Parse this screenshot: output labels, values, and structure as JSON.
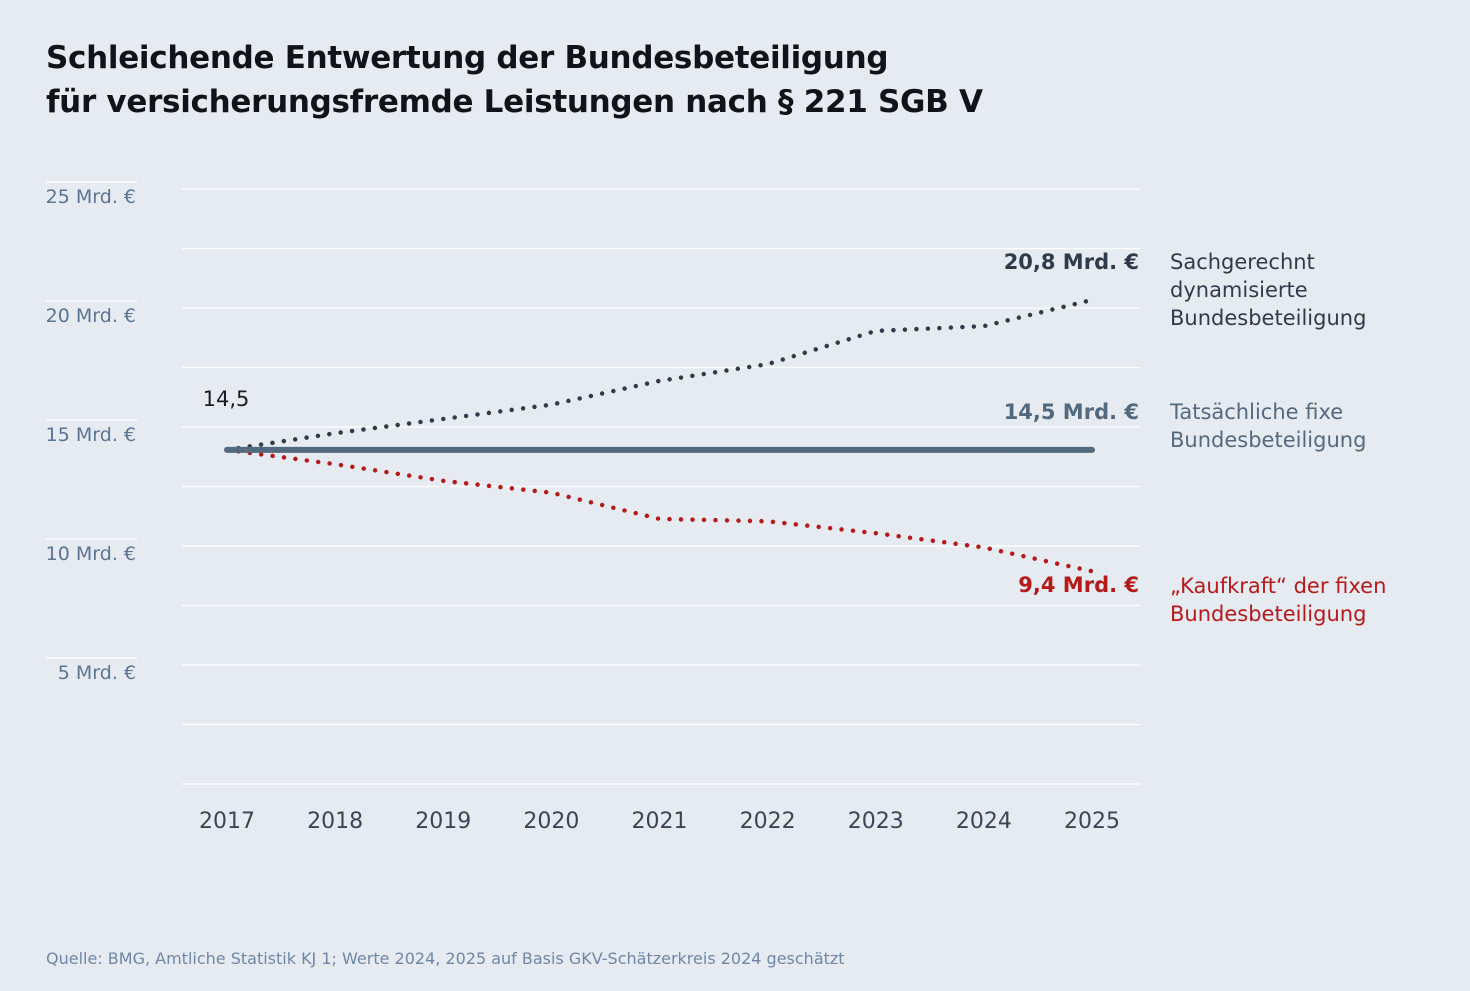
{
  "title": {
    "line1": "Schleichende Entwertung der Bundesbeteiligung",
    "line2": "für versicherungsfremde Leistungen nach § 221 SGB V"
  },
  "source": "Quelle: BMG, Amtliche Statistik KJ 1; Werte 2024, 2025 auf Basis GKV-Schätzerkreis 2024 geschätzt",
  "colors": {
    "background": "#e6ebf2",
    "grid": "#ffffff",
    "axis_text": "#5c7494",
    "dynamic": "#2f3b4b",
    "fixed": "#53697f",
    "purchasing": "#b51a1a"
  },
  "chart_data": {
    "type": "line",
    "categories": [
      "2017",
      "2018",
      "2019",
      "2020",
      "2021",
      "2022",
      "2023",
      "2024",
      "2025"
    ],
    "ylim": [
      0,
      25
    ],
    "y_ticks": [
      {
        "value": 25,
        "label": "25 Mrd. €"
      },
      {
        "value": 20,
        "label": "20 Mrd. €"
      },
      {
        "value": 15,
        "label": "15 Mrd. €"
      },
      {
        "value": 10,
        "label": "10 Mrd. €"
      },
      {
        "value": 5,
        "label": "5 Mrd. €"
      }
    ],
    "start_label": "14,5",
    "series": [
      {
        "id": "dynamic",
        "name": "Sachgerechnt dynamisierte Bundesbeteiligung",
        "legend_lines": [
          "Sachgerechnt",
          "dynamisierte",
          "Bundesbeteiligung"
        ],
        "end_label": "20,8 Mrd. €",
        "style": "dotted",
        "values": [
          14.5,
          15.2,
          15.8,
          16.4,
          17.4,
          18.1,
          19.5,
          19.7,
          20.8
        ]
      },
      {
        "id": "fixed",
        "name": "Tatsächliche fixe Bundesbeteiligung",
        "legend_lines": [
          "Tatsächliche fixe",
          "Bundesbeteiligung"
        ],
        "end_label": "14,5 Mrd. €",
        "style": "solid",
        "values": [
          14.5,
          14.5,
          14.5,
          14.5,
          14.5,
          14.5,
          14.5,
          14.5,
          14.5
        ]
      },
      {
        "id": "purchasing",
        "name": "„Kaufkraft“ der fixen Bundesbeteiligung",
        "legend_lines": [
          "„Kaufkraft“ der fixen",
          "Bundesbeteiligung"
        ],
        "end_label": "9,4 Mrd. €",
        "style": "dotted",
        "values": [
          14.5,
          13.9,
          13.2,
          12.7,
          11.6,
          11.5,
          11.0,
          10.4,
          9.4
        ]
      }
    ]
  }
}
